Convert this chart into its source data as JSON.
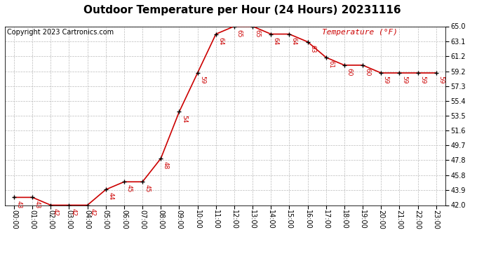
{
  "title": "Outdoor Temperature per Hour (24 Hours) 20231116",
  "copyright": "Copyright 2023 Cartronics.com",
  "legend_label": "Temperature (°F)",
  "hours": [
    "00:00",
    "01:00",
    "02:00",
    "03:00",
    "04:00",
    "05:00",
    "06:00",
    "07:00",
    "08:00",
    "09:00",
    "10:00",
    "11:00",
    "12:00",
    "13:00",
    "14:00",
    "15:00",
    "16:00",
    "17:00",
    "18:00",
    "19:00",
    "20:00",
    "21:00",
    "22:00",
    "23:00"
  ],
  "temps": [
    43,
    43,
    42,
    42,
    42,
    44,
    45,
    45,
    48,
    54,
    59,
    64,
    65,
    65,
    64,
    64,
    63,
    61,
    60,
    60,
    59,
    59,
    59,
    59
  ],
  "ylim_min": 42.0,
  "ylim_max": 65.0,
  "yticks": [
    42.0,
    43.9,
    45.8,
    47.8,
    49.7,
    51.6,
    53.5,
    55.4,
    57.3,
    59.2,
    61.2,
    63.1,
    65.0
  ],
  "line_color": "#cc0000",
  "marker_color": "#000000",
  "label_color": "#cc0000",
  "grid_color": "#bbbbbb",
  "bg_color": "#ffffff",
  "title_fontsize": 11,
  "copyright_fontsize": 7,
  "legend_fontsize": 8,
  "tick_fontsize": 7,
  "annotation_fontsize": 6.5,
  "fig_width": 6.9,
  "fig_height": 3.75,
  "dpi": 100
}
